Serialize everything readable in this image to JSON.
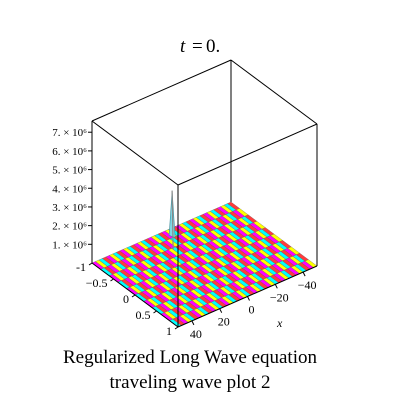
{
  "chart_data": {
    "type": "surface3d",
    "title": {
      "lhs": "t",
      "rhs": "0."
    },
    "caption": [
      "Regularized Long Wave equation",
      "traveling wave plot 2"
    ],
    "zlabel_ticks": [
      "1. × 10⁶",
      "2. × 10⁶",
      "3. × 10⁶",
      "4. × 10⁶",
      "5. × 10⁶",
      "6. × 10⁶",
      "7. × 10⁶"
    ],
    "zticks": [
      1000000,
      2000000,
      3000000,
      4000000,
      5000000,
      6000000,
      7000000
    ],
    "zlim": [
      0,
      7600000
    ],
    "x": {
      "label": "x",
      "range": [
        -50,
        50
      ],
      "ticks": [
        40,
        20,
        0,
        -20,
        -40
      ],
      "tick_labels": [
        "40",
        "20",
        "0",
        "−20",
        "−40"
      ]
    },
    "y": {
      "range": [
        -1,
        1
      ],
      "ticks": [
        -1,
        -0.5,
        0,
        0.5,
        1
      ],
      "tick_labels": [
        "-1",
        "−0.5",
        "0",
        "0.5",
        "1"
      ]
    },
    "surface": {
      "baseline": 0,
      "spike": {
        "x": -3,
        "y": -0.85,
        "peak": 2400000
      },
      "stripe_colors": [
        "#ff00ff",
        "#ffff00",
        "#00ffff",
        "#ff3b3b",
        "#ff00ff",
        "#ffff00",
        "#00ffff",
        "#ff3b3b"
      ]
    },
    "grid": false,
    "box": true
  }
}
